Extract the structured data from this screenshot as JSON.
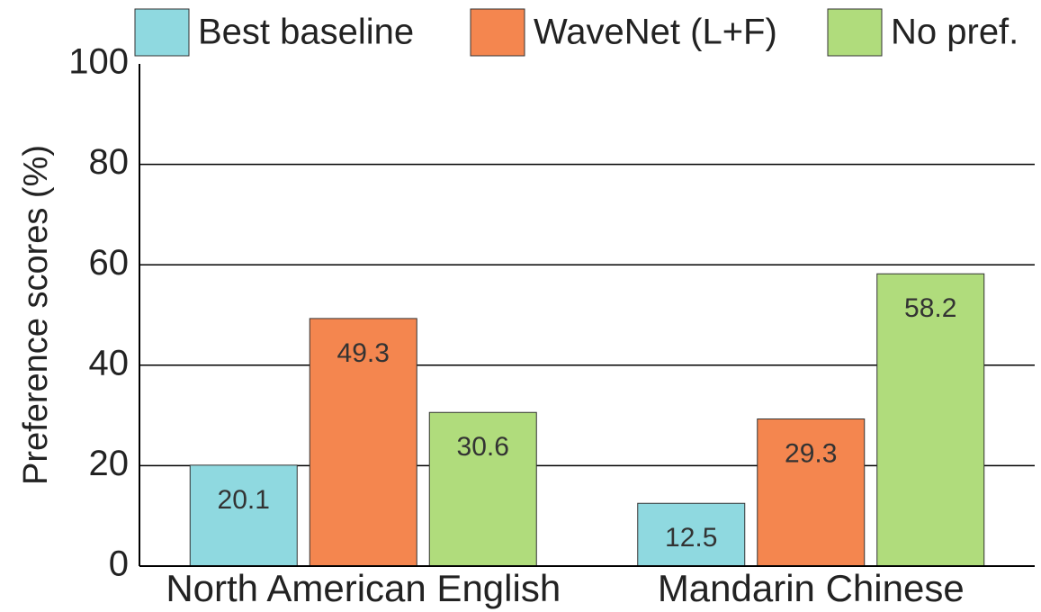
{
  "chart_data": {
    "type": "bar",
    "categories": [
      "North American English",
      "Mandarin Chinese"
    ],
    "series": [
      {
        "name": "Best baseline",
        "color": "#8fd9e0",
        "values": [
          20.1,
          12.5
        ]
      },
      {
        "name": "WaveNet (L+F)",
        "color": "#f4864f",
        "values": [
          49.3,
          29.3
        ]
      },
      {
        "name": "No pref.",
        "color": "#b0dc7c",
        "values": [
          30.6,
          58.2
        ]
      }
    ],
    "y_label": "Preference scores (%)",
    "ylim": [
      0,
      100
    ],
    "yticks": [
      0,
      20,
      40,
      60,
      80,
      100
    ],
    "grid": true,
    "legend": "top"
  }
}
